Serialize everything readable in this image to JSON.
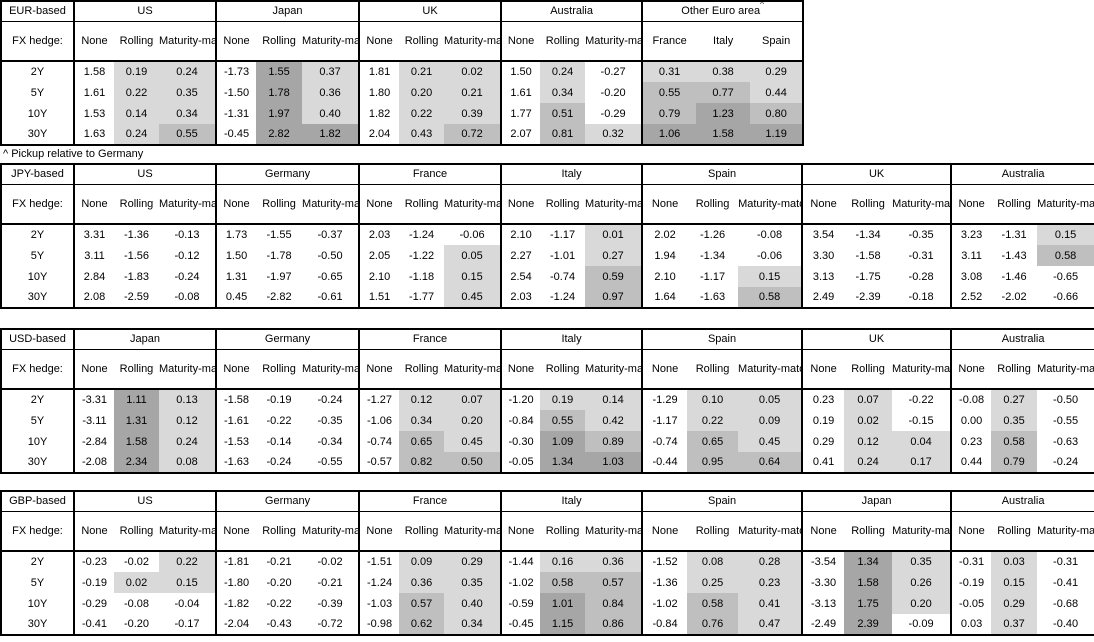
{
  "footnote": "^ Pickup relative to Germany",
  "fx_hedge_label": "FX hedge:",
  "tenors": [
    "2Y",
    "5Y",
    "10Y",
    "30Y"
  ],
  "hedge_col_headers": [
    "None",
    "Rolling",
    "Maturity-matched"
  ],
  "heatmap": {
    "description": "cell shading by value: <=0 white, 0 to 0.5 light, 0.5 to 1.0 medium, >=1.0 dark; None columns unshaded",
    "thresholds": [
      0.5,
      1.0
    ],
    "colors": {
      "light": "#d9d9d9",
      "medium": "#bfbfbf",
      "dark": "#a6a6a6"
    },
    "border_color": "#000000",
    "background": "#ffffff"
  },
  "tables": [
    {
      "base": "EUR-based",
      "groups": [
        {
          "name": "US",
          "rows": [
            [
              "1.58",
              "0.19",
              "0.24"
            ],
            [
              "1.61",
              "0.22",
              "0.35"
            ],
            [
              "1.53",
              "0.14",
              "0.34"
            ],
            [
              "1.63",
              "0.24",
              "0.55"
            ]
          ]
        },
        {
          "name": "Japan",
          "rows": [
            [
              "-1.73",
              "1.55",
              "0.37"
            ],
            [
              "-1.50",
              "1.78",
              "0.36"
            ],
            [
              "-1.31",
              "1.97",
              "0.40"
            ],
            [
              "-0.45",
              "2.82",
              "1.82"
            ]
          ]
        },
        {
          "name": "UK",
          "rows": [
            [
              "1.81",
              "0.21",
              "0.02"
            ],
            [
              "1.80",
              "0.20",
              "0.21"
            ],
            [
              "1.82",
              "0.22",
              "0.39"
            ],
            [
              "2.04",
              "0.43",
              "0.72"
            ]
          ]
        },
        {
          "name": "Australia",
          "rows": [
            [
              "1.50",
              "0.24",
              "-0.27"
            ],
            [
              "1.61",
              "0.34",
              "-0.20"
            ],
            [
              "1.77",
              "0.51",
              "-0.29"
            ],
            [
              "2.07",
              "0.81",
              "0.32"
            ]
          ]
        },
        {
          "name": "Other Euro area",
          "sup": "^",
          "countries": true,
          "cols": [
            "France",
            "Italy",
            "Spain"
          ],
          "rows": [
            [
              "0.31",
              "0.38",
              "0.29"
            ],
            [
              "0.55",
              "0.77",
              "0.44"
            ],
            [
              "0.79",
              "1.23",
              "0.80"
            ],
            [
              "1.06",
              "1.58",
              "1.19"
            ]
          ]
        }
      ]
    },
    {
      "base": "JPY-based",
      "groups": [
        {
          "name": "US",
          "rows": [
            [
              "3.31",
              "-1.36",
              "-0.13"
            ],
            [
              "3.11",
              "-1.56",
              "-0.12"
            ],
            [
              "2.84",
              "-1.83",
              "-0.24"
            ],
            [
              "2.08",
              "-2.59",
              "-0.08"
            ]
          ]
        },
        {
          "name": "Germany",
          "rows": [
            [
              "1.73",
              "-1.55",
              "-0.37"
            ],
            [
              "1.50",
              "-1.78",
              "-0.50"
            ],
            [
              "1.31",
              "-1.97",
              "-0.65"
            ],
            [
              "0.45",
              "-2.82",
              "-0.61"
            ]
          ]
        },
        {
          "name": "France",
          "rows": [
            [
              "2.03",
              "-1.24",
              "-0.06"
            ],
            [
              "2.05",
              "-1.22",
              "0.05"
            ],
            [
              "2.10",
              "-1.18",
              "0.15"
            ],
            [
              "1.51",
              "-1.77",
              "0.45"
            ]
          ]
        },
        {
          "name": "Italy",
          "rows": [
            [
              "2.10",
              "-1.17",
              "0.01"
            ],
            [
              "2.27",
              "-1.01",
              "0.27"
            ],
            [
              "2.54",
              "-0.74",
              "0.59"
            ],
            [
              "2.03",
              "-1.24",
              "0.97"
            ]
          ]
        },
        {
          "name": "Spain",
          "rows": [
            [
              "2.02",
              "-1.26",
              "-0.08"
            ],
            [
              "1.94",
              "-1.34",
              "-0.06"
            ],
            [
              "2.10",
              "-1.17",
              "0.15"
            ],
            [
              "1.64",
              "-1.63",
              "0.58"
            ]
          ]
        },
        {
          "name": "UK",
          "rows": [
            [
              "3.54",
              "-1.34",
              "-0.35"
            ],
            [
              "3.30",
              "-1.58",
              "-0.31"
            ],
            [
              "3.13",
              "-1.75",
              "-0.28"
            ],
            [
              "2.49",
              "-2.39",
              "-0.18"
            ]
          ]
        },
        {
          "name": "Australia",
          "rows": [
            [
              "3.23",
              "-1.31",
              "0.15"
            ],
            [
              "3.11",
              "-1.43",
              "0.58"
            ],
            [
              "3.08",
              "-1.46",
              "-0.65"
            ],
            [
              "2.52",
              "-2.02",
              "-0.66"
            ]
          ]
        }
      ]
    },
    {
      "base": "USD-based",
      "groups": [
        {
          "name": "Japan",
          "rows": [
            [
              "-3.31",
              "1.11",
              "0.13"
            ],
            [
              "-3.11",
              "1.31",
              "0.12"
            ],
            [
              "-2.84",
              "1.58",
              "0.24"
            ],
            [
              "-2.08",
              "2.34",
              "0.08"
            ]
          ]
        },
        {
          "name": "Germany",
          "rows": [
            [
              "-1.58",
              "-0.19",
              "-0.24"
            ],
            [
              "-1.61",
              "-0.22",
              "-0.35"
            ],
            [
              "-1.53",
              "-0.14",
              "-0.34"
            ],
            [
              "-1.63",
              "-0.24",
              "-0.55"
            ]
          ]
        },
        {
          "name": "France",
          "rows": [
            [
              "-1.27",
              "0.12",
              "0.07"
            ],
            [
              "-1.06",
              "0.34",
              "0.20"
            ],
            [
              "-0.74",
              "0.65",
              "0.45"
            ],
            [
              "-0.57",
              "0.82",
              "0.50"
            ]
          ]
        },
        {
          "name": "Italy",
          "rows": [
            [
              "-1.20",
              "0.19",
              "0.14"
            ],
            [
              "-0.84",
              "0.55",
              "0.42"
            ],
            [
              "-0.30",
              "1.09",
              "0.89"
            ],
            [
              "-0.05",
              "1.34",
              "1.03"
            ]
          ]
        },
        {
          "name": "Spain",
          "rows": [
            [
              "-1.29",
              "0.10",
              "0.05"
            ],
            [
              "-1.17",
              "0.22",
              "0.09"
            ],
            [
              "-0.74",
              "0.65",
              "0.45"
            ],
            [
              "-0.44",
              "0.95",
              "0.64"
            ]
          ]
        },
        {
          "name": "UK",
          "rows": [
            [
              "0.23",
              "0.07",
              "-0.22"
            ],
            [
              "0.19",
              "0.02",
              "-0.15"
            ],
            [
              "0.29",
              "0.12",
              "0.04"
            ],
            [
              "0.41",
              "0.24",
              "0.17"
            ]
          ]
        },
        {
          "name": "Australia",
          "rows": [
            [
              "-0.08",
              "0.27",
              "-0.50"
            ],
            [
              "0.00",
              "0.35",
              "-0.55"
            ],
            [
              "0.23",
              "0.58",
              "-0.63"
            ],
            [
              "0.44",
              "0.79",
              "-0.24"
            ]
          ]
        }
      ]
    },
    {
      "base": "GBP-based",
      "groups": [
        {
          "name": "US",
          "rows": [
            [
              "-0.23",
              "-0.02",
              "0.22"
            ],
            [
              "-0.19",
              "0.02",
              "0.15"
            ],
            [
              "-0.29",
              "-0.08",
              "-0.04"
            ],
            [
              "-0.41",
              "-0.20",
              "-0.17"
            ]
          ]
        },
        {
          "name": "Germany",
          "rows": [
            [
              "-1.81",
              "-0.21",
              "-0.02"
            ],
            [
              "-1.80",
              "-0.20",
              "-0.21"
            ],
            [
              "-1.82",
              "-0.22",
              "-0.39"
            ],
            [
              "-2.04",
              "-0.43",
              "-0.72"
            ]
          ]
        },
        {
          "name": "France",
          "rows": [
            [
              "-1.51",
              "0.09",
              "0.29"
            ],
            [
              "-1.24",
              "0.36",
              "0.35"
            ],
            [
              "-1.03",
              "0.57",
              "0.40"
            ],
            [
              "-0.98",
              "0.62",
              "0.34"
            ]
          ]
        },
        {
          "name": "Italy",
          "rows": [
            [
              "-1.44",
              "0.16",
              "0.36"
            ],
            [
              "-1.02",
              "0.58",
              "0.57"
            ],
            [
              "-0.59",
              "1.01",
              "0.84"
            ],
            [
              "-0.45",
              "1.15",
              "0.86"
            ]
          ]
        },
        {
          "name": "Spain",
          "rows": [
            [
              "-1.52",
              "0.08",
              "0.28"
            ],
            [
              "-1.36",
              "0.25",
              "0.23"
            ],
            [
              "-1.02",
              "0.58",
              "0.41"
            ],
            [
              "-0.84",
              "0.76",
              "0.47"
            ]
          ]
        },
        {
          "name": "Japan",
          "rows": [
            [
              "-3.54",
              "1.34",
              "0.35"
            ],
            [
              "-3.30",
              "1.58",
              "0.26"
            ],
            [
              "-3.13",
              "1.75",
              "0.20"
            ],
            [
              "-2.49",
              "2.39",
              "-0.09"
            ]
          ]
        },
        {
          "name": "Australia",
          "rows": [
            [
              "-0.31",
              "0.03",
              "-0.31"
            ],
            [
              "-0.19",
              "0.15",
              "-0.41"
            ],
            [
              "-0.05",
              "0.29",
              "-0.68"
            ],
            [
              "0.03",
              "0.37",
              "-0.40"
            ]
          ]
        }
      ]
    }
  ]
}
